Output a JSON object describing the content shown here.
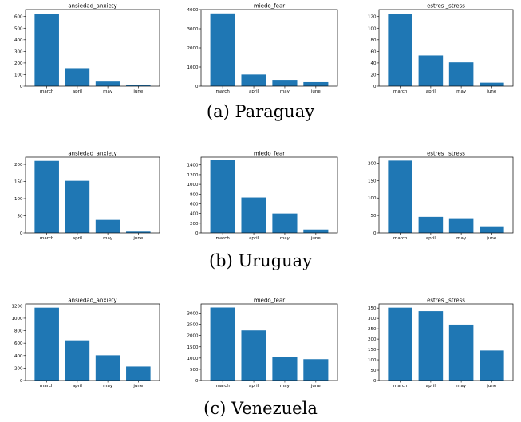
{
  "captions": [
    "(a) Paraguay",
    "(b) Uruguay",
    "(c) Venezuela"
  ],
  "colors": {
    "bar": "#1f77b4",
    "axis": "#000000",
    "background": "#ffffff"
  },
  "chart_data": [
    {
      "type": "bar",
      "title": "ansiedad_anxiety",
      "categories": [
        "march",
        "april",
        "may",
        "june"
      ],
      "values": [
        620,
        155,
        40,
        12
      ],
      "ylim": [
        0,
        660
      ],
      "yticks": [
        0,
        100,
        200,
        300,
        400,
        500,
        600
      ],
      "grid": false
    },
    {
      "type": "bar",
      "title": "miedo_fear",
      "categories": [
        "march",
        "april",
        "may",
        "june"
      ],
      "values": [
        3800,
        610,
        330,
        210
      ],
      "ylim": [
        0,
        4000
      ],
      "yticks": [
        0,
        1000,
        2000,
        3000,
        4000
      ],
      "grid": false
    },
    {
      "type": "bar",
      "title": "estres _stress",
      "categories": [
        "march",
        "april",
        "may",
        "june"
      ],
      "values": [
        125,
        53,
        41,
        6
      ],
      "ylim": [
        0,
        132
      ],
      "yticks": [
        0,
        20,
        40,
        60,
        80,
        100,
        120
      ],
      "grid": false
    },
    {
      "type": "bar",
      "title": "ansiedad_anxiety",
      "categories": [
        "march",
        "april",
        "may",
        "june"
      ],
      "values": [
        210,
        152,
        38,
        4
      ],
      "ylim": [
        0,
        221
      ],
      "yticks": [
        0,
        50,
        100,
        150,
        200
      ],
      "grid": false
    },
    {
      "type": "bar",
      "title": "miedo_fear",
      "categories": [
        "march",
        "april",
        "may",
        "june"
      ],
      "values": [
        1500,
        730,
        400,
        70
      ],
      "ylim": [
        0,
        1560
      ],
      "yticks": [
        0,
        200,
        400,
        600,
        800,
        1000,
        1200,
        1400
      ],
      "grid": false
    },
    {
      "type": "bar",
      "title": "estres _stress",
      "categories": [
        "march",
        "april",
        "may",
        "june"
      ],
      "values": [
        207,
        46,
        42,
        19
      ],
      "ylim": [
        0,
        217
      ],
      "yticks": [
        0,
        50,
        100,
        150,
        200
      ],
      "grid": false
    },
    {
      "type": "bar",
      "title": "ansiedad_anxiety",
      "categories": [
        "march",
        "april",
        "may",
        "june"
      ],
      "values": [
        1170,
        645,
        405,
        225
      ],
      "ylim": [
        0,
        1230
      ],
      "yticks": [
        0,
        200,
        400,
        600,
        800,
        1000,
        1200
      ],
      "grid": false
    },
    {
      "type": "bar",
      "title": "miedo_fear",
      "categories": [
        "march",
        "april",
        "may",
        "june"
      ],
      "values": [
        3250,
        2230,
        1050,
        950
      ],
      "ylim": [
        0,
        3410
      ],
      "yticks": [
        0,
        500,
        1000,
        1500,
        2000,
        2500,
        3000
      ],
      "grid": false
    },
    {
      "type": "bar",
      "title": "estres _stress",
      "categories": [
        "march",
        "april",
        "may",
        "june"
      ],
      "values": [
        352,
        335,
        270,
        145
      ],
      "ylim": [
        0,
        370
      ],
      "yticks": [
        0,
        50,
        100,
        150,
        200,
        250,
        300,
        350
      ],
      "grid": false
    }
  ]
}
